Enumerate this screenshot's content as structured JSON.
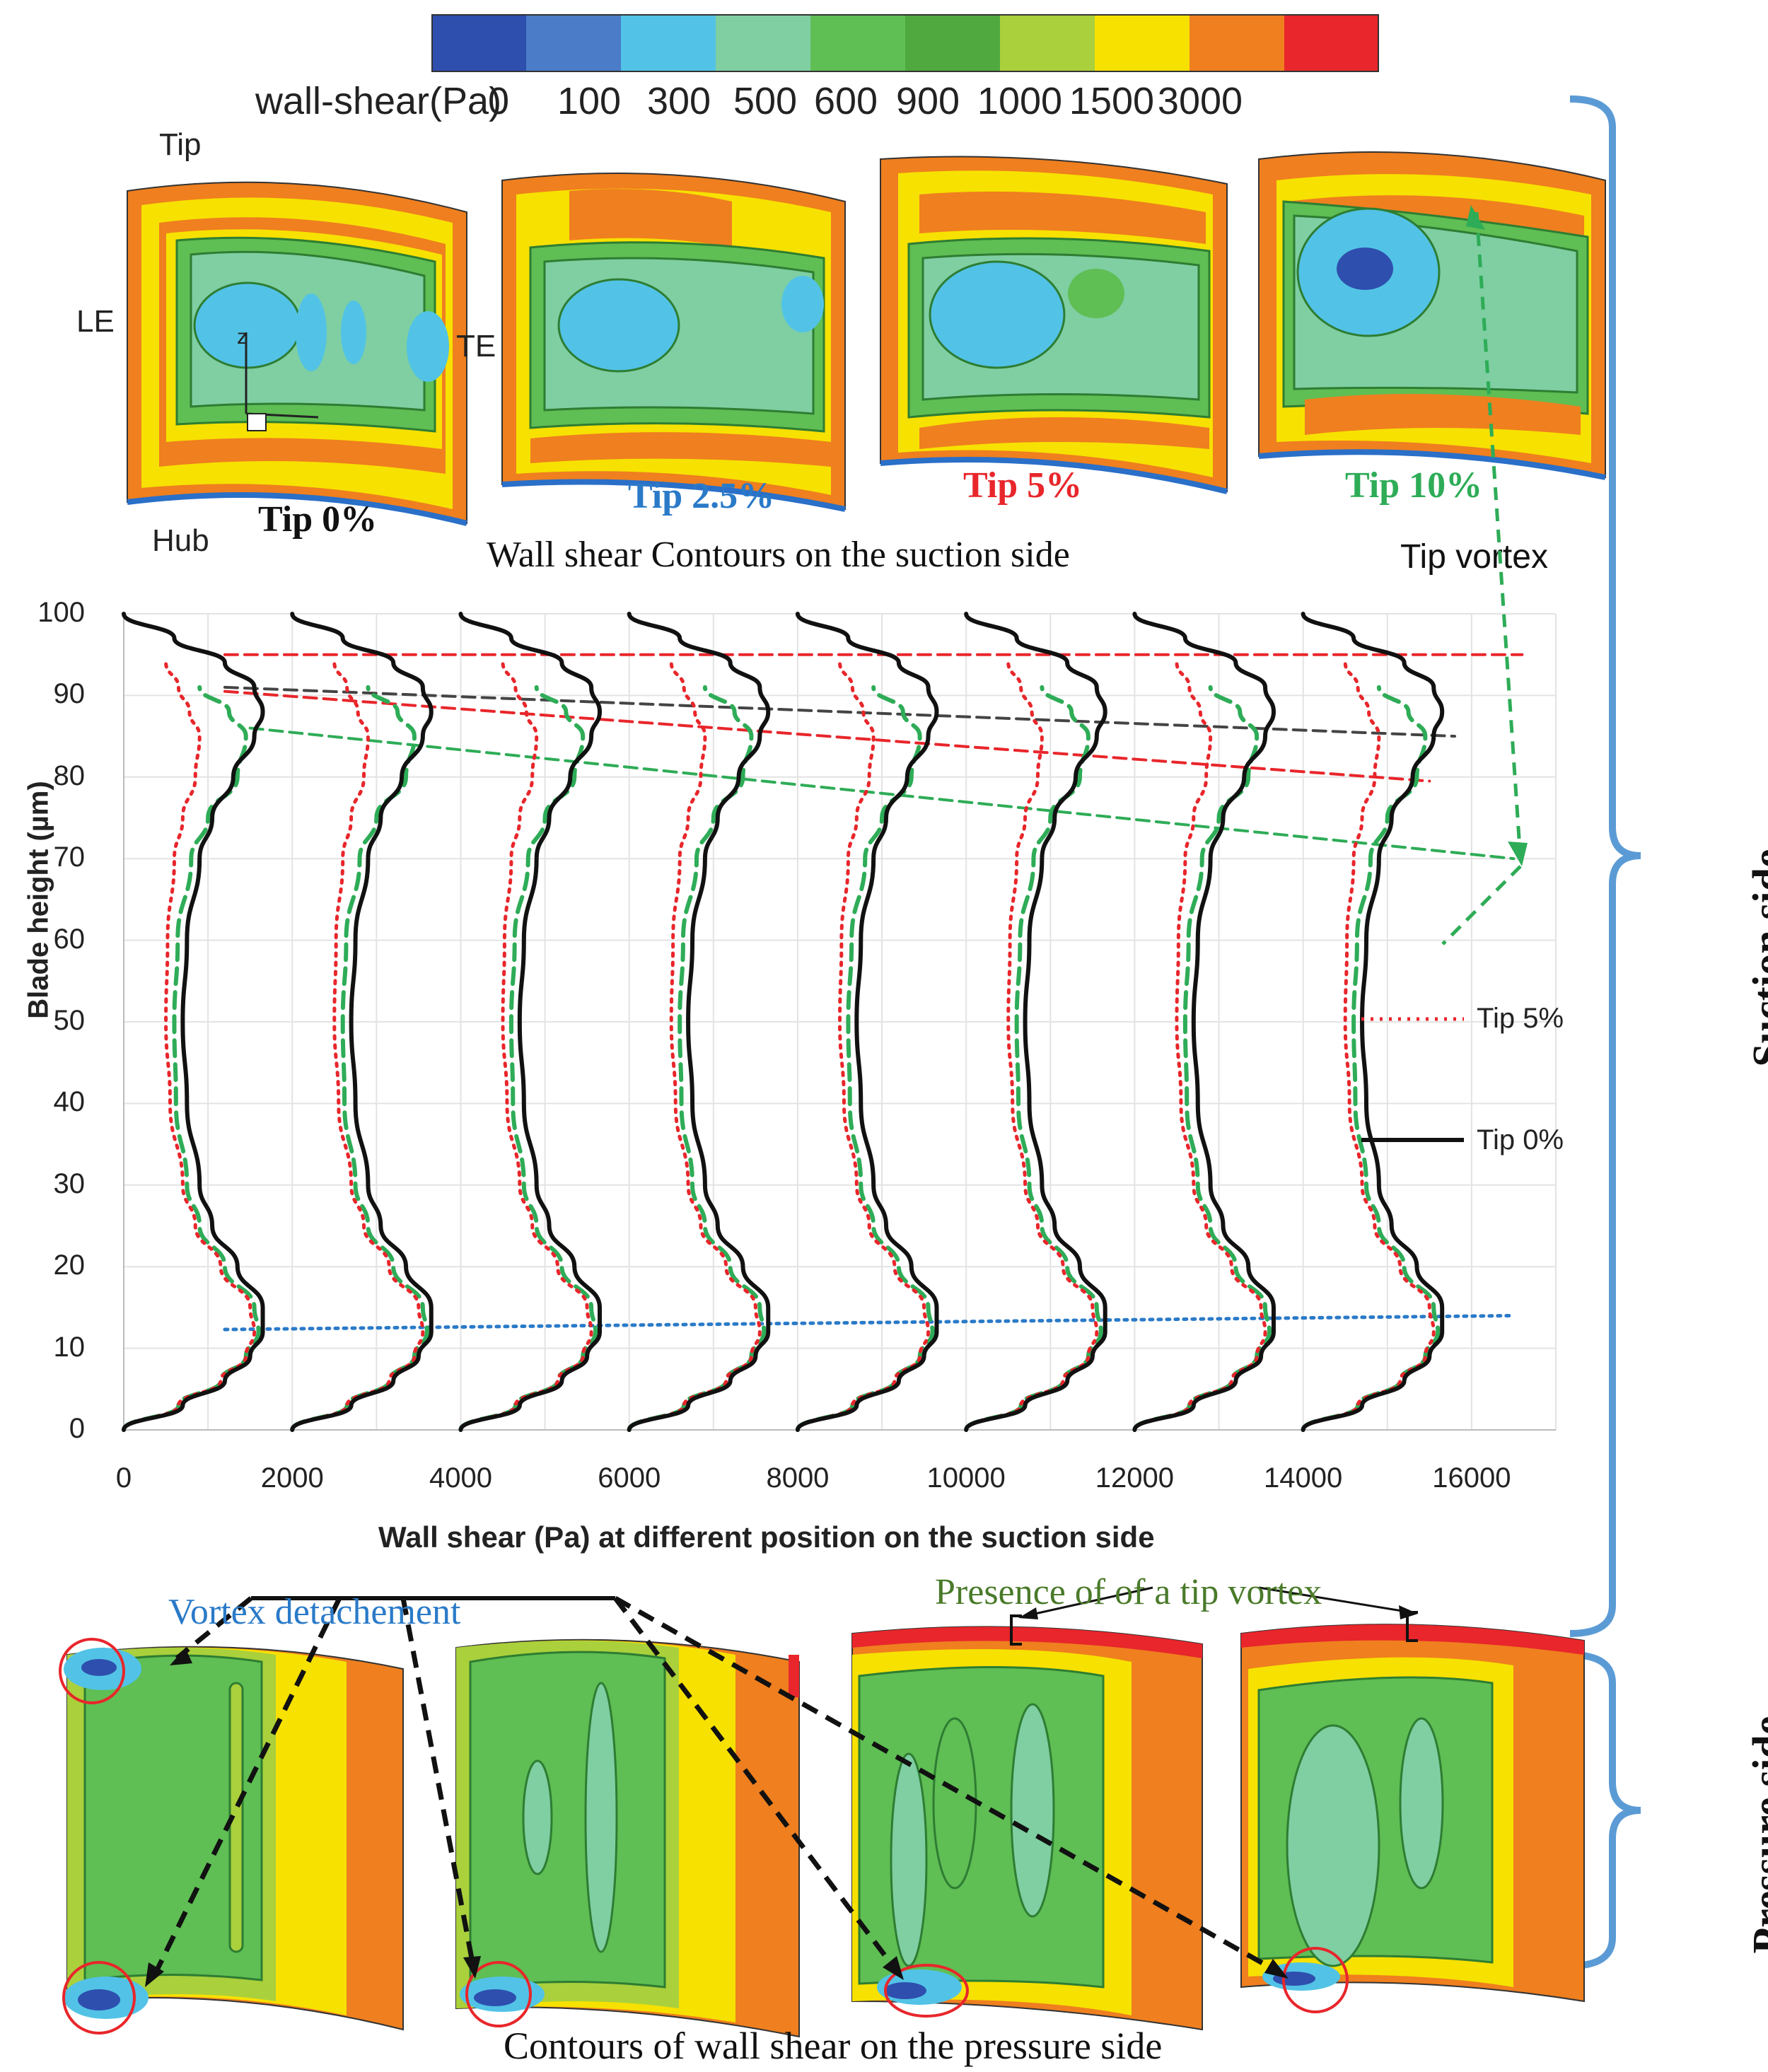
{
  "colorbar": {
    "title": "wall-shear(Pa)",
    "ticks": [
      "0",
      "100",
      "300",
      "500",
      "600",
      "900",
      "1000",
      "1500",
      "3000"
    ],
    "colors": [
      "#2e4fae",
      "#4a7cc7",
      "#52c3e6",
      "#7fcfa3",
      "#5fbe54",
      "#4fa93f",
      "#aad03c",
      "#f7e100",
      "#ef7f1f",
      "#e8262b"
    ]
  },
  "suction_contours": {
    "caption": "Wall shear Contours on the suction side",
    "labels": {
      "tip": "Tip",
      "le": "LE",
      "te": "TE",
      "hub": "Hub",
      "axis": "z",
      "tip_vortex": "Tip vortex"
    },
    "panels": [
      {
        "label": "Tip 0%",
        "color": "#111111"
      },
      {
        "label": "Tip 2.5%",
        "color": "#2a7ac8"
      },
      {
        "label": "Tip 5%",
        "color": "#e8262b"
      },
      {
        "label": "Tip 10%",
        "color": "#2eac57"
      }
    ]
  },
  "pressure_contours": {
    "caption": "Contours of wall shear on the pressure side",
    "vortex_detachment": "Vortex detachement",
    "tip_vortex_presence": "Presence of of a tip vortex"
  },
  "side_labels": {
    "suction": "Suction side",
    "pressure": "Pressure side"
  },
  "chart_data": {
    "type": "line",
    "title": "",
    "xlabel": "Wall shear (Pa) at different position on the suction side",
    "ylabel": "Blade height (µm)",
    "xlim": [
      0,
      17000
    ],
    "ylim": [
      0,
      100
    ],
    "xticks": [
      "0",
      "2000",
      "4000",
      "6000",
      "8000",
      "10000",
      "12000",
      "14000",
      "16000"
    ],
    "yticks": [
      "0",
      "10",
      "20",
      "30",
      "40",
      "50",
      "60",
      "70",
      "80",
      "90",
      "100"
    ],
    "grid": true,
    "legend": [
      {
        "name": "Tip 5%",
        "style": "dotted",
        "color": "#e8262b"
      },
      {
        "name": "Tip 0%",
        "style": "solid",
        "color": "#111111"
      }
    ],
    "profile_offsets": [
      0,
      2000,
      4000,
      6000,
      8000,
      10000,
      12000,
      14000
    ],
    "profile_shape": {
      "y": [
        0,
        3,
        6,
        9,
        12,
        15,
        20,
        25,
        30,
        40,
        50,
        60,
        70,
        75,
        80,
        85,
        88,
        91,
        94,
        97,
        100
      ],
      "series": [
        {
          "name": "Tip 0%",
          "style": "solid",
          "color": "#111111",
          "values": [
            0,
            700,
            1200,
            1500,
            1650,
            1650,
            1350,
            1050,
            900,
            750,
            700,
            750,
            900,
            1050,
            1300,
            1550,
            1650,
            1550,
            1200,
            600,
            0
          ]
        },
        {
          "name": "Tip 5%",
          "style": "dotted",
          "color": "#e8262b",
          "values": [
            0,
            650,
            1150,
            1450,
            1550,
            1500,
            1150,
            850,
            700,
            550,
            500,
            520,
            600,
            700,
            850,
            900,
            780,
            650,
            500,
            null,
            null
          ]
        },
        {
          "name": "Tip 10%",
          "style": "dashed",
          "color": "#2eac57",
          "values": [
            0,
            650,
            1150,
            1450,
            1600,
            1550,
            1200,
            900,
            750,
            620,
            600,
            640,
            800,
            1000,
            1350,
            1450,
            1250,
            900,
            null,
            null,
            null
          ]
        }
      ]
    },
    "reference_lines": [
      {
        "name": "tip0-peak-trend",
        "style": "dashed",
        "color": "#444444",
        "from": [
          1200,
          91
        ],
        "to": [
          15800,
          85
        ]
      },
      {
        "name": "tip5-peak-trend",
        "style": "dashed",
        "color": "#e8262b",
        "from": [
          1200,
          90.5
        ],
        "to": [
          15500,
          79.5
        ]
      },
      {
        "name": "tip10-peak-trend",
        "style": "dashed",
        "color": "#2eac57",
        "from": [
          1500,
          86
        ],
        "to": [
          16500,
          70
        ]
      },
      {
        "name": "tip5-tip-line",
        "style": "dashed",
        "color": "#e8262b",
        "from": [
          1200,
          95
        ],
        "to": [
          16600,
          95
        ]
      },
      {
        "name": "hub-peak-line",
        "style": "dotted",
        "color": "#2a7ac8",
        "from": [
          1200,
          12.3
        ],
        "to": [
          16500,
          14
        ]
      }
    ]
  }
}
